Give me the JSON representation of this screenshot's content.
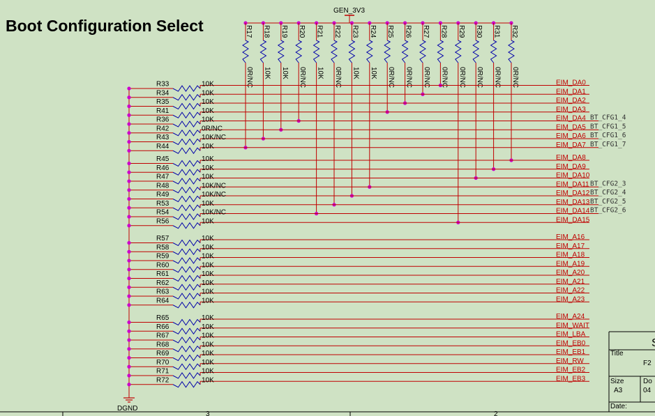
{
  "title": "Boot Configuration Select",
  "power": {
    "label": "GEN_3V3"
  },
  "ground": {
    "label": "DGND"
  },
  "colors": {
    "background": "#cfe2c4",
    "wire": "#c00000",
    "junction": "#cc00cc",
    "resistor": "#0000aa",
    "text": "#000000"
  },
  "top_resistors": [
    {
      "ref": "R17",
      "value": "0R/NC",
      "net": "EIM_DA7"
    },
    {
      "ref": "R18",
      "value": "10K",
      "net": "EIM_DA6"
    },
    {
      "ref": "R19",
      "value": "10K",
      "net": "EIM_DA5"
    },
    {
      "ref": "R20",
      "value": "0R/NC",
      "net": "EIM_DA4"
    },
    {
      "ref": "R21",
      "value": "10K",
      "net": "EIM_DA14"
    },
    {
      "ref": "R22",
      "value": "0R/NC",
      "net": "EIM_DA13"
    },
    {
      "ref": "R23",
      "value": "10K",
      "net": "EIM_DA12"
    },
    {
      "ref": "R24",
      "value": "10K",
      "net": "EIM_DA11"
    },
    {
      "ref": "R25",
      "value": "0R/NC",
      "net": "EIM_DA3"
    },
    {
      "ref": "R26",
      "value": "0R/NC",
      "net": "EIM_DA2"
    },
    {
      "ref": "R27",
      "value": "0R/NC",
      "net": "EIM_DA1"
    },
    {
      "ref": "R28",
      "value": "0R/NC",
      "net": "EIM_DA0"
    },
    {
      "ref": "R29",
      "value": "0R/NC",
      "net": "EIM_DA15"
    },
    {
      "ref": "R30",
      "value": "0R/NC",
      "net": "EIM_DA10"
    },
    {
      "ref": "R31",
      "value": "0R/NC",
      "net": "EIM_DA9"
    },
    {
      "ref": "R32",
      "value": "0R/NC",
      "net": "EIM_DA8"
    }
  ],
  "groups": [
    {
      "rows": [
        {
          "ref": "R33",
          "value": "10K",
          "net": "EIM_DA0"
        },
        {
          "ref": "R34",
          "value": "10K",
          "net": "EIM_DA1"
        },
        {
          "ref": "R35",
          "value": "10K",
          "net": "EIM_DA2"
        },
        {
          "ref": "R41",
          "value": "10K",
          "net": "EIM_DA3"
        },
        {
          "ref": "R36",
          "value": "10K",
          "net": "EIM_DA4",
          "cfg": "BT_CFG1_4"
        },
        {
          "ref": "R42",
          "value": "0R/NC",
          "net": "EIM_DA5",
          "cfg": "BT_CFG1_5"
        },
        {
          "ref": "R43",
          "value": "10K/NC",
          "net": "EIM_DA6",
          "cfg": "BT_CFG1_6"
        },
        {
          "ref": "R44",
          "value": "10K",
          "net": "EIM_DA7",
          "cfg": "BT_CFG1_7"
        }
      ]
    },
    {
      "rows": [
        {
          "ref": "R45",
          "value": "10K",
          "net": "EIM_DA8"
        },
        {
          "ref": "R46",
          "value": "10K",
          "net": "EIM_DA9"
        },
        {
          "ref": "R47",
          "value": "10K",
          "net": "EIM_DA10"
        },
        {
          "ref": "R48",
          "value": "10K/NC",
          "net": "EIM_DA11",
          "cfg": "BT_CFG2_3"
        },
        {
          "ref": "R49",
          "value": "10K/NC",
          "net": "EIM_DA12",
          "cfg": "BT_CFG2_4"
        },
        {
          "ref": "R53",
          "value": "10K",
          "net": "EIM_DA13",
          "cfg": "BT_CFG2_5"
        },
        {
          "ref": "R54",
          "value": "10K/NC",
          "net": "EIM_DA14",
          "cfg": "BT_CFG2_6"
        },
        {
          "ref": "R56",
          "value": "10K",
          "net": "EIM_DA15"
        }
      ]
    },
    {
      "rows": [
        {
          "ref": "R57",
          "value": "10K",
          "net": "EIM_A16"
        },
        {
          "ref": "R58",
          "value": "10K",
          "net": "EIM_A17"
        },
        {
          "ref": "R59",
          "value": "10K",
          "net": "EIM_A18"
        },
        {
          "ref": "R60",
          "value": "10K",
          "net": "EIM_A19"
        },
        {
          "ref": "R61",
          "value": "10K",
          "net": "EIM_A20"
        },
        {
          "ref": "R62",
          "value": "10K",
          "net": "EIM_A21"
        },
        {
          "ref": "R63",
          "value": "10K",
          "net": "EIM_A22"
        },
        {
          "ref": "R64",
          "value": "10K",
          "net": "EIM_A23"
        }
      ]
    },
    {
      "rows": [
        {
          "ref": "R65",
          "value": "10K",
          "net": "EIM_A24"
        },
        {
          "ref": "R66",
          "value": "10K",
          "net": "EIM_WAIT"
        },
        {
          "ref": "R67",
          "value": "10K",
          "net": "EIM_LBA"
        },
        {
          "ref": "R68",
          "value": "10K",
          "net": "EIM_EB0"
        },
        {
          "ref": "R69",
          "value": "10K",
          "net": "EIM_EB1"
        },
        {
          "ref": "R70",
          "value": "10K",
          "net": "EIM_RW"
        },
        {
          "ref": "R71",
          "value": "10K",
          "net": "EIM_EB2"
        },
        {
          "ref": "R72",
          "value": "10K",
          "net": "EIM_EB3"
        }
      ]
    }
  ],
  "title_block": {
    "title_label": "Title",
    "title_value": "F2",
    "size_label": "Size",
    "size_value": "A3",
    "doc_label": "Do",
    "doc_value": "04",
    "date_label": "Date:",
    "corner_letter": "S"
  },
  "frame": {
    "zone_3": "3",
    "zone_2": "2"
  }
}
